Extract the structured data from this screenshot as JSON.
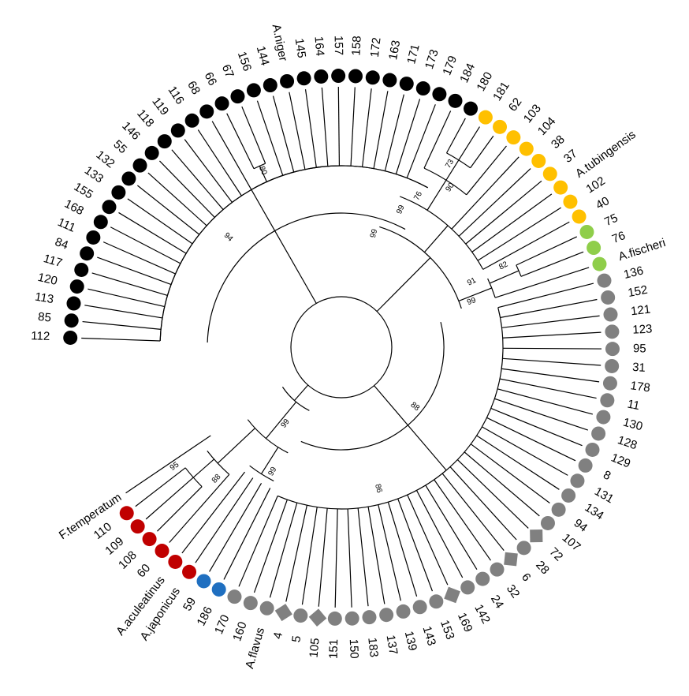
{
  "figure": {
    "type": "circular-phylogenetic-tree",
    "colors": {
      "black": "#000000",
      "red": "#c00000",
      "blue": "#1f6fc0",
      "gray": "#808080",
      "green": "#8fce4a",
      "yellow": "#ffc000"
    },
    "leaves": [
      {
        "label": "112",
        "color": "black",
        "shape": "circle"
      },
      {
        "label": "85",
        "color": "black",
        "shape": "circle"
      },
      {
        "label": "113",
        "color": "black",
        "shape": "circle"
      },
      {
        "label": "120",
        "color": "black",
        "shape": "circle"
      },
      {
        "label": "117",
        "color": "black",
        "shape": "circle"
      },
      {
        "label": "84",
        "color": "black",
        "shape": "circle"
      },
      {
        "label": "111",
        "color": "black",
        "shape": "circle"
      },
      {
        "label": "168",
        "color": "black",
        "shape": "circle"
      },
      {
        "label": "155",
        "color": "black",
        "shape": "circle"
      },
      {
        "label": "133",
        "color": "black",
        "shape": "circle"
      },
      {
        "label": "132",
        "color": "black",
        "shape": "circle"
      },
      {
        "label": "55",
        "color": "black",
        "shape": "circle"
      },
      {
        "label": "146",
        "color": "black",
        "shape": "circle"
      },
      {
        "label": "118",
        "color": "black",
        "shape": "circle"
      },
      {
        "label": "119",
        "color": "black",
        "shape": "circle"
      },
      {
        "label": "116",
        "color": "black",
        "shape": "circle"
      },
      {
        "label": "68",
        "color": "black",
        "shape": "circle"
      },
      {
        "label": "66",
        "color": "black",
        "shape": "circle"
      },
      {
        "label": "67",
        "color": "black",
        "shape": "circle"
      },
      {
        "label": "156",
        "color": "black",
        "shape": "circle"
      },
      {
        "label": "144",
        "color": "black",
        "shape": "circle"
      },
      {
        "label": "A.niger",
        "color": "black",
        "shape": "circle"
      },
      {
        "label": "145",
        "color": "black",
        "shape": "circle"
      },
      {
        "label": "164",
        "color": "black",
        "shape": "circle"
      },
      {
        "label": "157",
        "color": "black",
        "shape": "circle"
      },
      {
        "label": "158",
        "color": "black",
        "shape": "circle"
      },
      {
        "label": "172",
        "color": "black",
        "shape": "circle"
      },
      {
        "label": "163",
        "color": "black",
        "shape": "circle"
      },
      {
        "label": "171",
        "color": "black",
        "shape": "circle"
      },
      {
        "label": "173",
        "color": "black",
        "shape": "circle"
      },
      {
        "label": "179",
        "color": "black",
        "shape": "circle"
      },
      {
        "label": "184",
        "color": "black",
        "shape": "circle"
      },
      {
        "label": "180",
        "color": "black",
        "shape": "circle"
      },
      {
        "label": "181",
        "color": "yellow",
        "shape": "circle"
      },
      {
        "label": "62",
        "color": "yellow",
        "shape": "circle"
      },
      {
        "label": "103",
        "color": "yellow",
        "shape": "circle"
      },
      {
        "label": "104",
        "color": "yellow",
        "shape": "circle"
      },
      {
        "label": "38",
        "color": "yellow",
        "shape": "circle"
      },
      {
        "label": "37",
        "color": "yellow",
        "shape": "circle"
      },
      {
        "label": "A.tubingensis",
        "color": "yellow",
        "shape": "circle"
      },
      {
        "label": "102",
        "color": "yellow",
        "shape": "circle"
      },
      {
        "label": "40",
        "color": "yellow",
        "shape": "circle"
      },
      {
        "label": "75",
        "color": "green",
        "shape": "circle"
      },
      {
        "label": "76",
        "color": "green",
        "shape": "circle"
      },
      {
        "label": "A.fischeri",
        "color": "green",
        "shape": "circle"
      },
      {
        "label": "136",
        "color": "gray",
        "shape": "circle"
      },
      {
        "label": "152",
        "color": "gray",
        "shape": "circle"
      },
      {
        "label": "121",
        "color": "gray",
        "shape": "circle"
      },
      {
        "label": "123",
        "color": "gray",
        "shape": "circle"
      },
      {
        "label": "95",
        "color": "gray",
        "shape": "circle"
      },
      {
        "label": "31",
        "color": "gray",
        "shape": "circle"
      },
      {
        "label": "178",
        "color": "gray",
        "shape": "circle"
      },
      {
        "label": "11",
        "color": "gray",
        "shape": "circle"
      },
      {
        "label": "130",
        "color": "gray",
        "shape": "circle"
      },
      {
        "label": "128",
        "color": "gray",
        "shape": "circle"
      },
      {
        "label": "129",
        "color": "gray",
        "shape": "circle"
      },
      {
        "label": "8",
        "color": "gray",
        "shape": "circle"
      },
      {
        "label": "131",
        "color": "gray",
        "shape": "circle"
      },
      {
        "label": "134",
        "color": "gray",
        "shape": "circle"
      },
      {
        "label": "94",
        "color": "gray",
        "shape": "circle"
      },
      {
        "label": "107",
        "color": "gray",
        "shape": "circle"
      },
      {
        "label": "72",
        "color": "gray",
        "shape": "diamond"
      },
      {
        "label": "28",
        "color": "gray",
        "shape": "circle"
      },
      {
        "label": "6",
        "color": "gray",
        "shape": "diamond"
      },
      {
        "label": "32",
        "color": "gray",
        "shape": "circle"
      },
      {
        "label": "24",
        "color": "gray",
        "shape": "circle"
      },
      {
        "label": "142",
        "color": "gray",
        "shape": "circle"
      },
      {
        "label": "169",
        "color": "gray",
        "shape": "diamond"
      },
      {
        "label": "153",
        "color": "gray",
        "shape": "circle"
      },
      {
        "label": "143",
        "color": "gray",
        "shape": "circle"
      },
      {
        "label": "139",
        "color": "gray",
        "shape": "circle"
      },
      {
        "label": "137",
        "color": "gray",
        "shape": "circle"
      },
      {
        "label": "183",
        "color": "gray",
        "shape": "circle"
      },
      {
        "label": "150",
        "color": "gray",
        "shape": "circle"
      },
      {
        "label": "151",
        "color": "gray",
        "shape": "circle"
      },
      {
        "label": "105",
        "color": "gray",
        "shape": "diamond"
      },
      {
        "label": "5",
        "color": "gray",
        "shape": "circle"
      },
      {
        "label": "4",
        "color": "gray",
        "shape": "diamond"
      },
      {
        "label": "A.flavus",
        "color": "gray",
        "shape": "circle"
      },
      {
        "label": "160",
        "color": "gray",
        "shape": "circle"
      },
      {
        "label": "170",
        "color": "gray",
        "shape": "circle"
      },
      {
        "label": "186",
        "color": "blue",
        "shape": "circle"
      },
      {
        "label": "59",
        "color": "blue",
        "shape": "circle"
      },
      {
        "label": "A.japonicus",
        "color": "red",
        "shape": "circle"
      },
      {
        "label": "A.aculeatinus",
        "color": "red",
        "shape": "circle"
      },
      {
        "label": "60",
        "color": "red",
        "shape": "circle"
      },
      {
        "label": "108",
        "color": "red",
        "shape": "circle"
      },
      {
        "label": "109",
        "color": "red",
        "shape": "circle"
      },
      {
        "label": "110",
        "color": "red",
        "shape": "circle"
      },
      {
        "label": "F.temperatum",
        "color": "none",
        "shape": "none"
      }
    ],
    "bootstrap_values": [
      "95",
      "88",
      "99",
      "99",
      "94",
      "80",
      "99",
      "99",
      "73",
      "90",
      "76",
      "91",
      "99",
      "82",
      "88",
      "86"
    ]
  }
}
